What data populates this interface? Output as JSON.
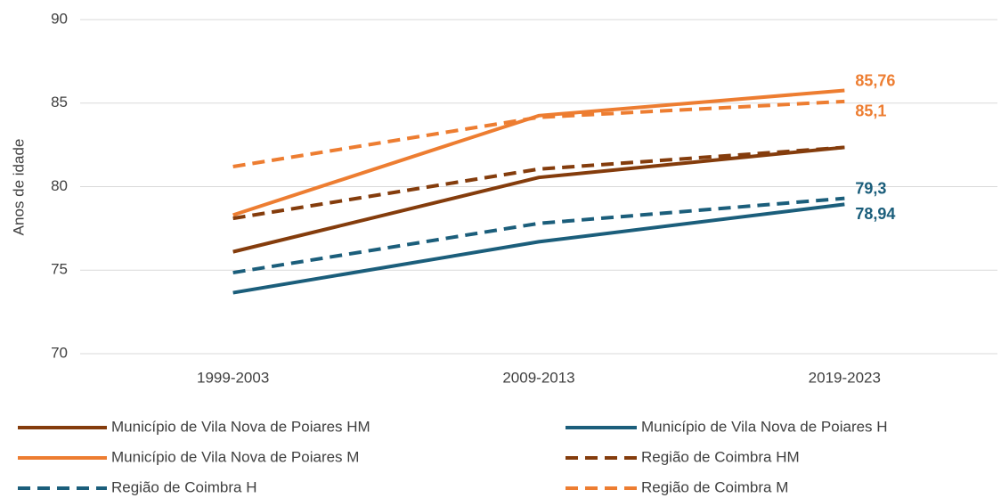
{
  "chart_data": {
    "type": "line",
    "y_label": "Anos de idade",
    "categories": [
      "1999-2003",
      "2009-2013",
      "2019-2023"
    ],
    "series": [
      {
        "name": "Município de Vila Nova de Poiares HM",
        "color": "#843c0c",
        "style": "solid",
        "values": [
          76.1,
          80.55,
          82.35
        ]
      },
      {
        "name": "Município de Vila Nova de Poiares H",
        "color": "#1b5e7b",
        "style": "solid",
        "values": [
          73.65,
          76.7,
          78.94
        ],
        "value_labels": [
          null,
          null,
          "78,94"
        ]
      },
      {
        "name": "Município de Vila Nova de Poiares M",
        "color": "#ed7d31",
        "style": "solid",
        "values": [
          78.3,
          84.25,
          85.76
        ],
        "value_labels": [
          null,
          null,
          "85,76"
        ]
      },
      {
        "name": "Região de Coimbra HM",
        "color": "#843c0c",
        "style": "dashed",
        "values": [
          78.1,
          81.05,
          82.35
        ]
      },
      {
        "name": "Região de Coimbra H",
        "color": "#1b5e7b",
        "style": "dashed",
        "values": [
          74.85,
          77.8,
          79.3
        ],
        "value_labels": [
          null,
          null,
          "79,3"
        ]
      },
      {
        "name": "Região de Coimbra M",
        "color": "#ed7d31",
        "style": "dashed",
        "values": [
          81.2,
          84.15,
          85.1
        ],
        "value_labels": [
          null,
          null,
          "85,1"
        ]
      }
    ],
    "ylim": [
      70,
      90
    ],
    "yticks": [
      70,
      75,
      80,
      85,
      90
    ],
    "grid": true
  }
}
